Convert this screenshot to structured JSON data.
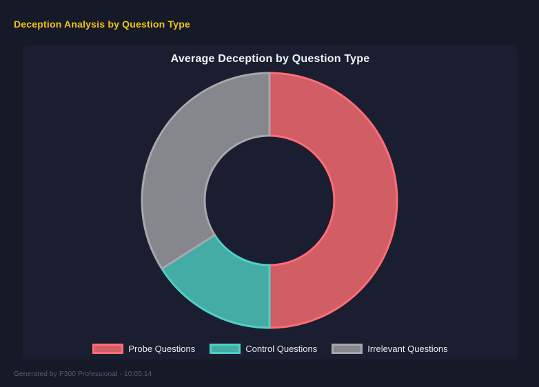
{
  "header": {
    "title": "Deception Analysis by Question Type",
    "title_color": "#f0c419"
  },
  "panel": {
    "background": "#1a1e30",
    "page_background": "#161927"
  },
  "chart_data": {
    "type": "pie",
    "variant": "doughnut",
    "title": "Average Deception by Question Type",
    "categories": [
      "Probe Questions",
      "Control Questions",
      "Irrelevant Questions"
    ],
    "values": [
      50,
      16,
      34
    ],
    "segments": [
      {
        "label": "Probe Questions",
        "value": 50,
        "fill": "#d15d65",
        "border": "#ff6e77"
      },
      {
        "label": "Control Questions",
        "value": 16,
        "fill": "#45aba5",
        "border": "#4fd1c7"
      },
      {
        "label": "Irrelevant Questions",
        "value": 34,
        "fill": "#86878d",
        "border": "#a7a8ac"
      }
    ],
    "start_angle_deg": 0,
    "direction": "clockwise",
    "cutout_ratio": 0.51,
    "legend_position": "bottom",
    "title_color": "#f2f3f5",
    "legend_text_color": "#e9eaee"
  },
  "footer": {
    "text": "Generated by P300 Professional - 10:05:14"
  }
}
